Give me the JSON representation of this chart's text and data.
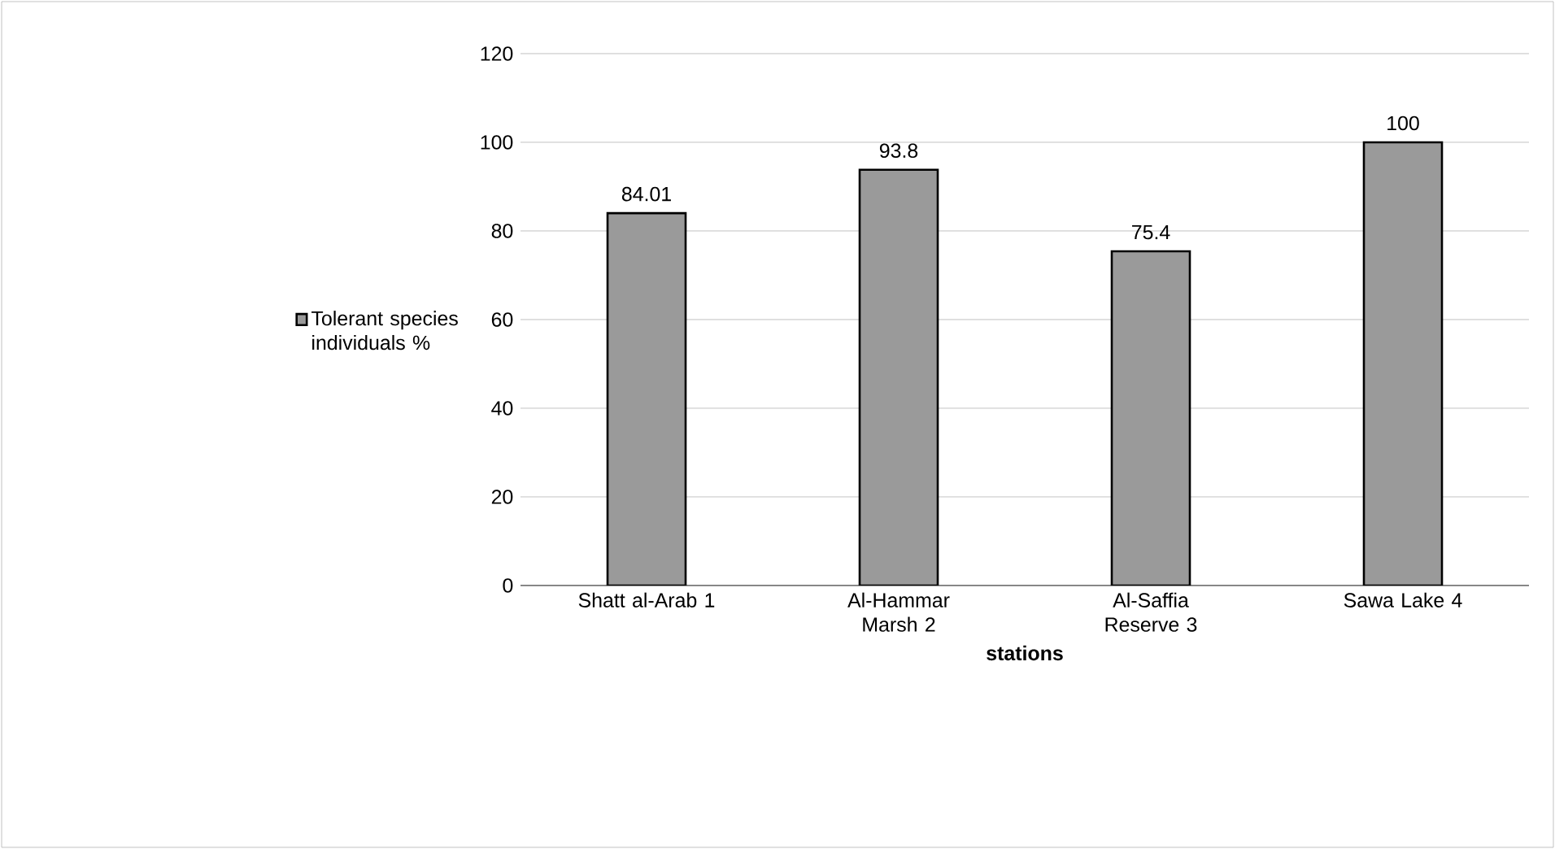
{
  "chart_data": {
    "type": "bar",
    "xlabel": "stations",
    "categories": [
      "Shatt al-Arab 1",
      "Al-Hammar Marsh 2",
      "Al-Saffia Reserve 3",
      "Sawa Lake 4"
    ],
    "series": [
      {
        "name": "Tolerant species individuals %",
        "color": "#9a9a9a",
        "values": [
          84.01,
          93.8,
          75.4,
          100
        ]
      }
    ],
    "ylim": [
      0,
      120
    ],
    "yticks": [
      0,
      20,
      40,
      60,
      80,
      100,
      120
    ],
    "grid": "y",
    "legend": "left",
    "data_labels": true
  }
}
